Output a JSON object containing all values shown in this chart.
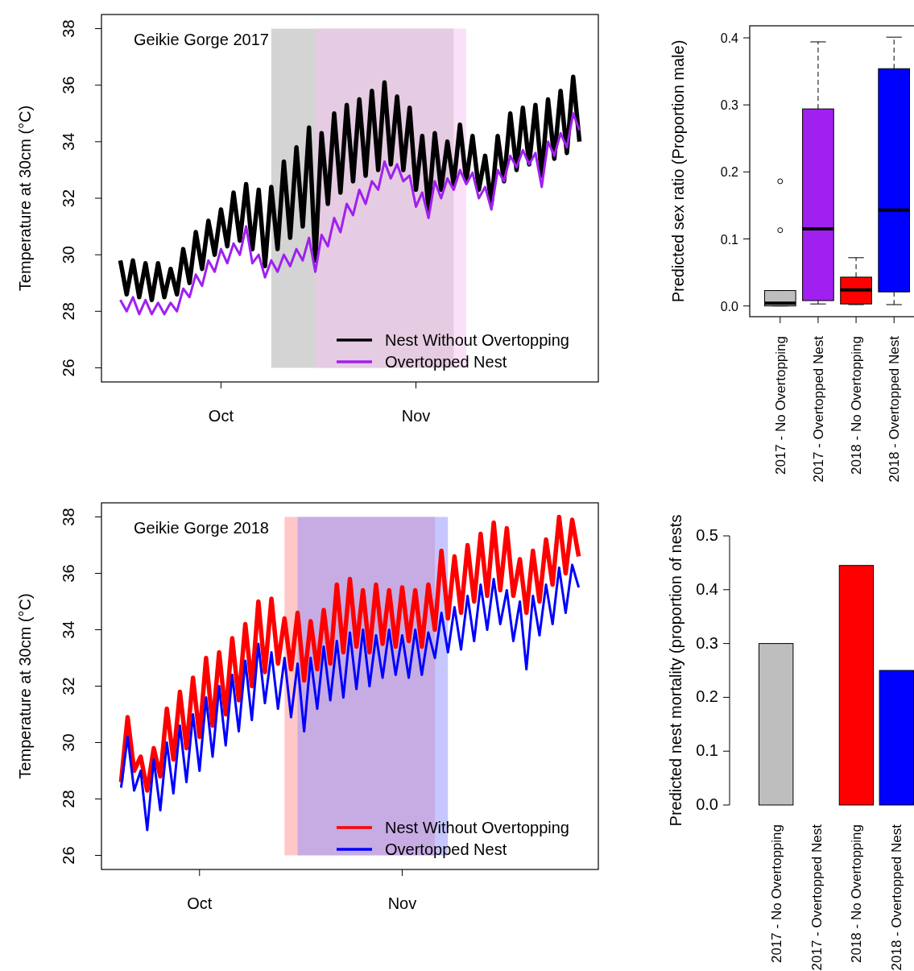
{
  "chart_data": [
    {
      "type": "line",
      "title": "Geikie Gorge 2017",
      "ylabel": "Temperature at 30cm (°C)",
      "xlim": [
        "2017-09-12",
        "2017-11-30"
      ],
      "xticks": [
        {
          "value": "2017-10-01",
          "label": "Oct"
        },
        {
          "value": "2017-11-01",
          "label": "Nov"
        }
      ],
      "ylim": [
        25.5,
        38.5
      ],
      "yticks": [
        26,
        28,
        30,
        32,
        34,
        36,
        38
      ],
      "legend": "bottom right",
      "x": [
        "2017-09-15",
        "2017-09-16",
        "2017-09-17",
        "2017-09-18",
        "2017-09-19",
        "2017-09-20",
        "2017-09-21",
        "2017-09-22",
        "2017-09-23",
        "2017-09-24",
        "2017-09-25",
        "2017-09-26",
        "2017-09-27",
        "2017-09-28",
        "2017-09-29",
        "2017-09-30",
        "2017-10-01",
        "2017-10-02",
        "2017-10-03",
        "2017-10-04",
        "2017-10-05",
        "2017-10-06",
        "2017-10-07",
        "2017-10-08",
        "2017-10-09",
        "2017-10-10",
        "2017-10-11",
        "2017-10-12",
        "2017-10-13",
        "2017-10-14",
        "2017-10-15",
        "2017-10-16",
        "2017-10-17",
        "2017-10-18",
        "2017-10-19",
        "2017-10-20",
        "2017-10-21",
        "2017-10-22",
        "2017-10-23",
        "2017-10-24",
        "2017-10-25",
        "2017-10-26",
        "2017-10-27",
        "2017-10-28",
        "2017-10-29",
        "2017-10-30",
        "2017-10-31",
        "2017-11-01",
        "2017-11-02",
        "2017-11-03",
        "2017-11-04",
        "2017-11-05",
        "2017-11-06",
        "2017-11-07",
        "2017-11-08",
        "2017-11-09",
        "2017-11-10",
        "2017-11-11",
        "2017-11-12",
        "2017-11-13",
        "2017-11-14",
        "2017-11-15",
        "2017-11-16",
        "2017-11-17",
        "2017-11-18",
        "2017-11-19",
        "2017-11-20",
        "2017-11-21",
        "2017-11-22",
        "2017-11-23",
        "2017-11-24",
        "2017-11-25",
        "2017-11-26",
        "2017-11-27"
      ],
      "bands": [
        {
          "axis": "x",
          "from": "2017-10-09",
          "to": "2017-11-07",
          "color": "#a9a9a9"
        },
        {
          "axis": "x",
          "from": "2017-10-16",
          "to": "2017-11-09",
          "color": "#f5c3f0"
        }
      ],
      "series": [
        {
          "name": "Nest Without Overtopping",
          "color": "#000000",
          "values": [
            29.8,
            28.6,
            29.8,
            28.5,
            29.7,
            28.4,
            29.7,
            28.5,
            29.5,
            28.6,
            30.2,
            29.0,
            30.8,
            29.5,
            31.2,
            30.0,
            31.6,
            30.3,
            32.2,
            30.5,
            32.5,
            30.2,
            32.3,
            29.6,
            32.4,
            30.2,
            33.3,
            30.6,
            33.8,
            31.0,
            34.5,
            29.8,
            34.3,
            31.8,
            35.0,
            32.2,
            35.3,
            32.6,
            35.5,
            32.8,
            35.8,
            33.0,
            36.1,
            33.2,
            35.6,
            33.0,
            35.2,
            32.3,
            34.2,
            31.6,
            34.3,
            32.3,
            34.0,
            32.5,
            34.6,
            32.6,
            34.2,
            32.3,
            33.5,
            31.8,
            34.2,
            32.6,
            35.0,
            33.0,
            35.2,
            33.2,
            35.3,
            32.8,
            35.5,
            33.4,
            35.8,
            33.6,
            36.3,
            34.0
          ]
        },
        {
          "name": "Overtopped Nest",
          "color": "#a020f0",
          "values": [
            28.4,
            28.0,
            28.5,
            27.9,
            28.4,
            27.9,
            28.3,
            27.9,
            28.3,
            28.0,
            28.8,
            28.5,
            29.3,
            28.9,
            29.8,
            29.4,
            30.2,
            29.7,
            30.4,
            30.0,
            31.0,
            29.7,
            30.0,
            29.2,
            29.8,
            29.4,
            30.0,
            29.6,
            30.2,
            29.8,
            30.6,
            29.4,
            30.7,
            30.3,
            31.3,
            30.8,
            31.8,
            31.4,
            32.3,
            31.8,
            32.6,
            32.3,
            33.3,
            32.7,
            33.2,
            32.6,
            32.8,
            31.7,
            32.2,
            31.3,
            32.6,
            32.0,
            32.7,
            32.3,
            33.0,
            32.5,
            32.9,
            32.0,
            32.4,
            31.6,
            33.0,
            32.6,
            33.5,
            33.1,
            33.7,
            33.2,
            33.6,
            32.4,
            34.0,
            33.5,
            34.3,
            33.8,
            35.0,
            34.4
          ]
        }
      ]
    },
    {
      "type": "box",
      "ylabel": "Predicted sex ratio (Proportion male)",
      "categories": [
        "2017 - No Overtopping",
        "2017 - Overtopped Nest",
        "2018 - No Overtopping",
        "2018 - Overtopped Nest"
      ],
      "colors": [
        "#bebebe",
        "#a020f0",
        "#ff0000",
        "#0000ff"
      ],
      "ylim": [
        -0.016,
        0.418
      ],
      "yticks": [
        {
          "value": 0,
          "label": "0.0"
        },
        0.1,
        0.2,
        0.3,
        0.4
      ],
      "boxes": [
        {
          "low": 0,
          "q1": 0,
          "median": 0.004,
          "q3": 0.023,
          "high": 0.023,
          "outliers": [
            0.113,
            0.186
          ]
        },
        {
          "low": 0.003,
          "q1": 0.008,
          "median": 0.115,
          "q3": 0.294,
          "high": 0.394
        },
        {
          "low": 0.002,
          "q1": 0.003,
          "median": 0.024,
          "q3": 0.043,
          "high": 0.072
        },
        {
          "low": 0.002,
          "q1": 0.021,
          "median": 0.143,
          "q3": 0.354,
          "high": 0.401
        }
      ]
    },
    {
      "type": "line",
      "title": "Geikie Gorge 2018",
      "ylabel": "Temperature at 30cm (°C)",
      "xlim": [
        "2018-09-16",
        "2018-12-01"
      ],
      "xticks": [
        {
          "value": "2018-10-01",
          "label": "Oct"
        },
        {
          "value": "2018-11-01",
          "label": "Nov"
        }
      ],
      "ylim": [
        25.5,
        38.5
      ],
      "yticks": [
        26,
        28,
        30,
        32,
        34,
        36,
        38
      ],
      "legend": "bottom right",
      "x": [
        "2018-09-19",
        "2018-09-20",
        "2018-09-21",
        "2018-09-22",
        "2018-09-23",
        "2018-09-24",
        "2018-09-25",
        "2018-09-26",
        "2018-09-27",
        "2018-09-28",
        "2018-09-29",
        "2018-09-30",
        "2018-10-01",
        "2018-10-02",
        "2018-10-03",
        "2018-10-04",
        "2018-10-05",
        "2018-10-06",
        "2018-10-07",
        "2018-10-08",
        "2018-10-09",
        "2018-10-10",
        "2018-10-11",
        "2018-10-12",
        "2018-10-13",
        "2018-10-14",
        "2018-10-15",
        "2018-10-16",
        "2018-10-17",
        "2018-10-18",
        "2018-10-19",
        "2018-10-20",
        "2018-10-21",
        "2018-10-22",
        "2018-10-23",
        "2018-10-24",
        "2018-10-25",
        "2018-10-26",
        "2018-10-27",
        "2018-10-28",
        "2018-10-29",
        "2018-10-30",
        "2018-10-31",
        "2018-11-01",
        "2018-11-02",
        "2018-11-03",
        "2018-11-04",
        "2018-11-05",
        "2018-11-06",
        "2018-11-07",
        "2018-11-08",
        "2018-11-09",
        "2018-11-10",
        "2018-11-11",
        "2018-11-12",
        "2018-11-13",
        "2018-11-14",
        "2018-11-15",
        "2018-11-16",
        "2018-11-17",
        "2018-11-18",
        "2018-11-19",
        "2018-11-20",
        "2018-11-21",
        "2018-11-22",
        "2018-11-23",
        "2018-11-24",
        "2018-11-25",
        "2018-11-26",
        "2018-11-27",
        "2018-11-28"
      ],
      "bands": [
        {
          "axis": "x",
          "from": "2018-10-14",
          "to": "2018-11-06",
          "color": "#ff9090"
        },
        {
          "axis": "x",
          "from": "2018-10-16",
          "to": "2018-11-08",
          "color": "#9090ff"
        }
      ],
      "series": [
        {
          "name": "Nest Without Overtopping",
          "color": "#ff0000",
          "values": [
            28.6,
            30.9,
            29.0,
            29.5,
            28.3,
            29.8,
            28.8,
            31.2,
            29.4,
            31.8,
            29.8,
            32.3,
            30.2,
            33.0,
            30.6,
            33.2,
            31.0,
            33.7,
            31.5,
            34.2,
            32.0,
            35.0,
            32.5,
            35.1,
            32.8,
            34.4,
            32.6,
            34.6,
            32.2,
            34.3,
            32.6,
            34.7,
            32.8,
            35.6,
            33.2,
            35.8,
            33.4,
            35.4,
            33.2,
            35.6,
            33.5,
            35.4,
            33.4,
            35.5,
            33.6,
            35.4,
            33.4,
            35.6,
            34.0,
            36.8,
            34.4,
            36.6,
            34.6,
            37.0,
            35.0,
            37.4,
            35.2,
            37.8,
            35.4,
            37.6,
            35.2,
            36.5,
            34.6,
            36.8,
            35.0,
            37.2,
            35.6,
            38.0,
            36.0,
            37.9,
            36.6
          ]
        },
        {
          "name": "Overtopped Nest",
          "color": "#0000ff",
          "values": [
            28.4,
            30.2,
            28.3,
            29.0,
            26.9,
            29.4,
            27.6,
            30.0,
            28.2,
            30.6,
            28.6,
            31.0,
            29.0,
            31.6,
            29.5,
            32.0,
            29.9,
            32.4,
            30.4,
            32.9,
            30.8,
            33.5,
            31.4,
            33.2,
            31.2,
            33.0,
            30.9,
            32.8,
            30.4,
            33.0,
            31.2,
            33.4,
            31.5,
            33.6,
            31.6,
            33.9,
            31.9,
            34.0,
            32.0,
            33.8,
            32.3,
            34.0,
            32.4,
            33.8,
            32.3,
            34.0,
            32.4,
            33.9,
            33.0,
            34.6,
            33.2,
            34.8,
            33.3,
            35.2,
            33.6,
            35.6,
            34.0,
            35.8,
            34.2,
            35.4,
            33.6,
            35.0,
            32.6,
            35.2,
            33.8,
            35.6,
            34.2,
            36.2,
            34.6,
            36.3,
            35.5
          ]
        }
      ]
    },
    {
      "type": "bar",
      "ylabel": "Predicted nest mortality (proportion of nests",
      "categories": [
        "2017 - No Overtopping",
        "2017 - Overtopped Nest",
        "2018 - No Overtopping",
        "2018 - Overtopped Nest"
      ],
      "values": [
        0.3,
        0,
        0.445,
        0.25
      ],
      "colors": [
        "#bebebe",
        "#a020f0",
        "#ff0000",
        "#0000ff"
      ],
      "ylim": [
        0,
        0.5
      ],
      "yticks": [
        {
          "value": 0,
          "label": "0.0"
        },
        0.1,
        0.2,
        0.3,
        0.4,
        0.5
      ]
    }
  ]
}
